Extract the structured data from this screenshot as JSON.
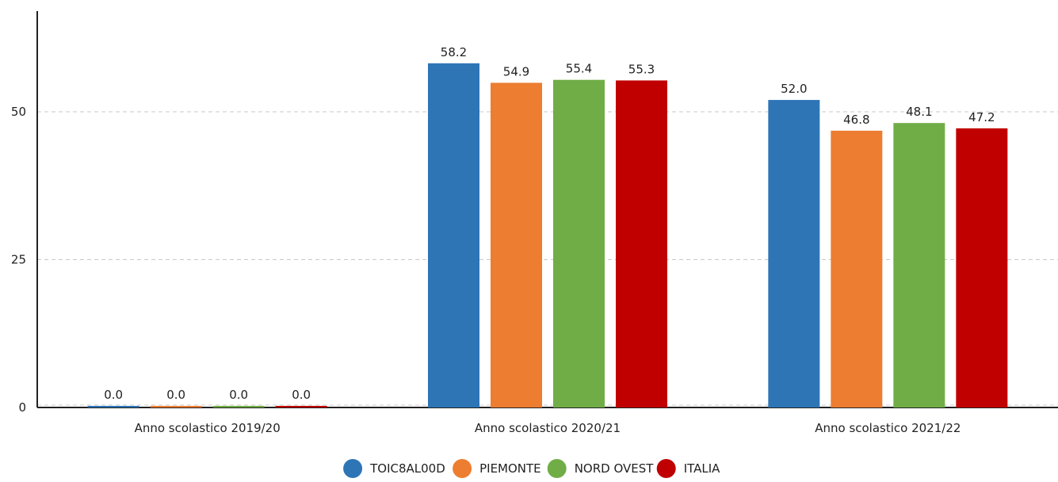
{
  "chart_data": {
    "type": "bar",
    "categories": [
      "Anno scolastico 2019/20",
      "Anno scolastico 2020/21",
      "Anno scolastico 2021/22"
    ],
    "series": [
      {
        "name": "TOIC8AL00D",
        "values": [
          0.0,
          58.2,
          52.0
        ],
        "color": "#2e75b6"
      },
      {
        "name": "PIEMONTE",
        "values": [
          0.0,
          54.9,
          46.8
        ],
        "color": "#ed7d31"
      },
      {
        "name": "NORD OVEST",
        "values": [
          0.0,
          55.4,
          48.1
        ],
        "color": "#70ad47"
      },
      {
        "name": "ITALIA",
        "values": [
          0.0,
          55.3,
          47.2
        ],
        "color": "#c00000"
      }
    ],
    "y_ticks": [
      0,
      25,
      50
    ],
    "ylim": [
      0,
      67
    ],
    "grid": true,
    "legend_position": "bottom-center",
    "data_labels": true,
    "value_format_decimals": 1
  }
}
